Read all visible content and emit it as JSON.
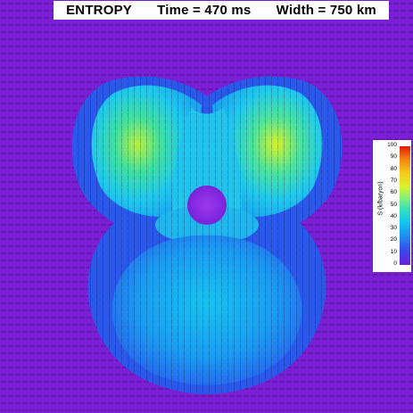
{
  "title": {
    "field": "ENTROPY",
    "time": "Time = 470 ms",
    "width": "Width = 750 km"
  },
  "colorbar": {
    "label": "S (k/baryon)",
    "ticks": [
      "100",
      "90",
      "80",
      "70",
      "60",
      "50",
      "40",
      "30",
      "20",
      "10",
      "0"
    ],
    "colors": {
      "low": "#6a1fd8",
      "mid": "#12c6f0",
      "high": "#e01a0a"
    }
  },
  "scene": {
    "background_color": "#7a1fd6",
    "core_color": "#8a2be2",
    "envelope_color": "#1aa6f0",
    "hot_lobe_color": "#c8f02a"
  }
}
